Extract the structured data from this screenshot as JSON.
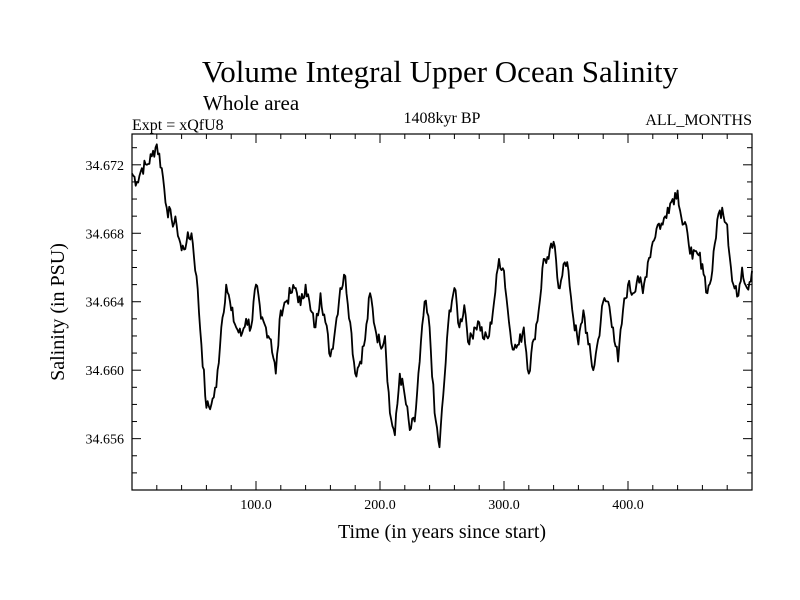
{
  "chart_data": {
    "type": "line",
    "title": "Volume Integral Upper Ocean Salinity",
    "subtitle": "Whole area",
    "left_label": "Expt = xQfU8",
    "center_label": "1408kyr BP",
    "right_label": "ALL_MONTHS",
    "xlabel": "Time (in years since start)",
    "ylabel": "Salinity (in PSU)",
    "xlim": [
      0,
      500
    ],
    "ylim": [
      34.653,
      34.6738
    ],
    "x_ticks": [
      100,
      200,
      300,
      400
    ],
    "x_tick_labels": [
      "100.0",
      "200.0",
      "300.0",
      "400.0"
    ],
    "y_ticks": [
      34.656,
      34.66,
      34.664,
      34.668,
      34.672
    ],
    "y_tick_labels": [
      "34.656",
      "34.660",
      "34.664",
      "34.668",
      "34.672"
    ],
    "series": [
      {
        "name": "Salinity",
        "x": [
          0,
          4,
          8,
          12,
          16,
          20,
          24,
          28,
          32,
          36,
          40,
          44,
          48,
          52,
          56,
          60,
          64,
          68,
          72,
          76,
          80,
          84,
          88,
          92,
          96,
          100,
          104,
          108,
          112,
          116,
          120,
          124,
          128,
          132,
          136,
          140,
          144,
          148,
          152,
          156,
          160,
          164,
          168,
          172,
          176,
          180,
          184,
          188,
          192,
          196,
          200,
          204,
          208,
          212,
          216,
          220,
          224,
          228,
          232,
          236,
          240,
          244,
          248,
          252,
          256,
          260,
          264,
          268,
          272,
          276,
          280,
          284,
          288,
          292,
          296,
          300,
          304,
          308,
          312,
          316,
          320,
          324,
          328,
          332,
          336,
          340,
          344,
          348,
          352,
          356,
          360,
          364,
          368,
          372,
          376,
          380,
          384,
          388,
          392,
          396,
          400,
          404,
          408,
          412,
          416,
          420,
          424,
          428,
          432,
          436,
          440,
          444,
          448,
          452,
          456,
          460,
          464,
          468,
          472,
          476,
          480,
          484,
          488,
          492,
          496,
          500
        ],
        "values": [
          34.6715,
          34.671,
          34.6718,
          34.672,
          34.6725,
          34.6732,
          34.6718,
          34.6695,
          34.6688,
          34.6685,
          34.667,
          34.6675,
          34.668,
          34.6655,
          34.6615,
          34.6578,
          34.658,
          34.659,
          34.6625,
          34.665,
          34.6635,
          34.6625,
          34.662,
          34.663,
          34.6625,
          34.665,
          34.663,
          34.6625,
          34.6618,
          34.6598,
          34.6635,
          34.664,
          34.6645,
          34.6648,
          34.6638,
          34.665,
          34.6635,
          34.6625,
          34.6645,
          34.6628,
          34.6608,
          34.6625,
          34.6648,
          34.6655,
          34.6628,
          34.6598,
          34.6605,
          34.6618,
          34.6645,
          34.6625,
          34.6615,
          34.662,
          34.6575,
          34.6562,
          34.6598,
          34.6585,
          34.6565,
          34.657,
          34.6605,
          34.664,
          34.6625,
          34.6575,
          34.6555,
          34.6595,
          34.6635,
          34.6648,
          34.6625,
          34.6638,
          34.6615,
          34.6625,
          34.6628,
          34.6618,
          34.662,
          34.664,
          34.6665,
          34.6658,
          34.6628,
          34.6612,
          34.6615,
          34.6625,
          34.6598,
          34.6618,
          34.6635,
          34.6665,
          34.6665,
          34.6675,
          34.6648,
          34.6662,
          34.6658,
          34.663,
          34.6615,
          34.6635,
          34.6615,
          34.66,
          34.6618,
          34.664,
          34.664,
          34.6625,
          34.6605,
          34.6635,
          34.665,
          34.6645,
          34.6655,
          34.6645,
          34.6663,
          34.6675,
          34.6685,
          34.6685,
          34.6695,
          34.67,
          34.6705,
          34.6685,
          34.668,
          34.6665,
          34.6668,
          34.6662,
          34.6645,
          34.6658,
          34.6688,
          34.6695,
          34.6685,
          34.6652,
          34.6643,
          34.666,
          34.6648,
          34.6658
        ]
      }
    ]
  }
}
